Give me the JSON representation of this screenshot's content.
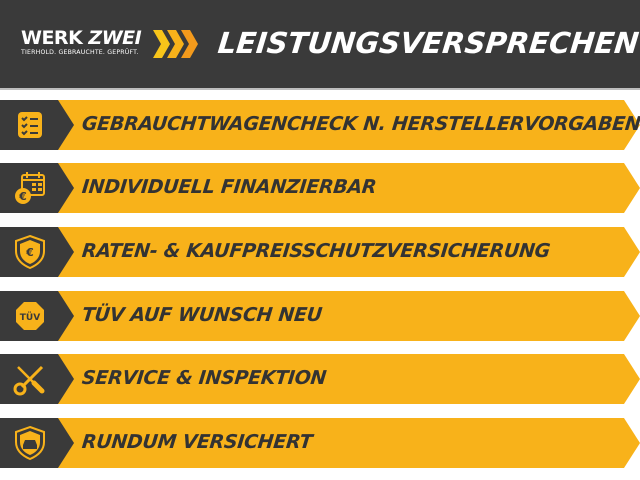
{
  "header": {
    "logo": {
      "word1": "WERK",
      "word2": "ZWEI",
      "tagline": "TIERHOLD. GEBRAUCHTE. GEPRÜFT."
    },
    "title": "LEISTUNGSVERSPRECHEN"
  },
  "colors": {
    "accent": "#f8b21a",
    "dark": "#3a3a3a",
    "chevron_light": "#f8c51a",
    "chevron_dark": "#f39a1c"
  },
  "items": [
    {
      "label": "GEBRAUCHTWAGENCHECK N. HERSTELLERVORGABEN",
      "icon": "checklist-icon"
    },
    {
      "label": "INDIVIDUELL FINANZIERBAR",
      "icon": "calendar-euro-icon"
    },
    {
      "label": "RATEN- & KAUFPREISSCHUTZVERSICHERUNG",
      "icon": "shield-euro-icon"
    },
    {
      "label": "TÜV AUF WUNSCH NEU",
      "icon": "tuv-badge-icon",
      "icon_text": "TÜV"
    },
    {
      "label": "SERVICE & INSPEKTION",
      "icon": "tools-icon"
    },
    {
      "label": "RUNDUM VERSICHERT",
      "icon": "shield-car-icon"
    }
  ]
}
